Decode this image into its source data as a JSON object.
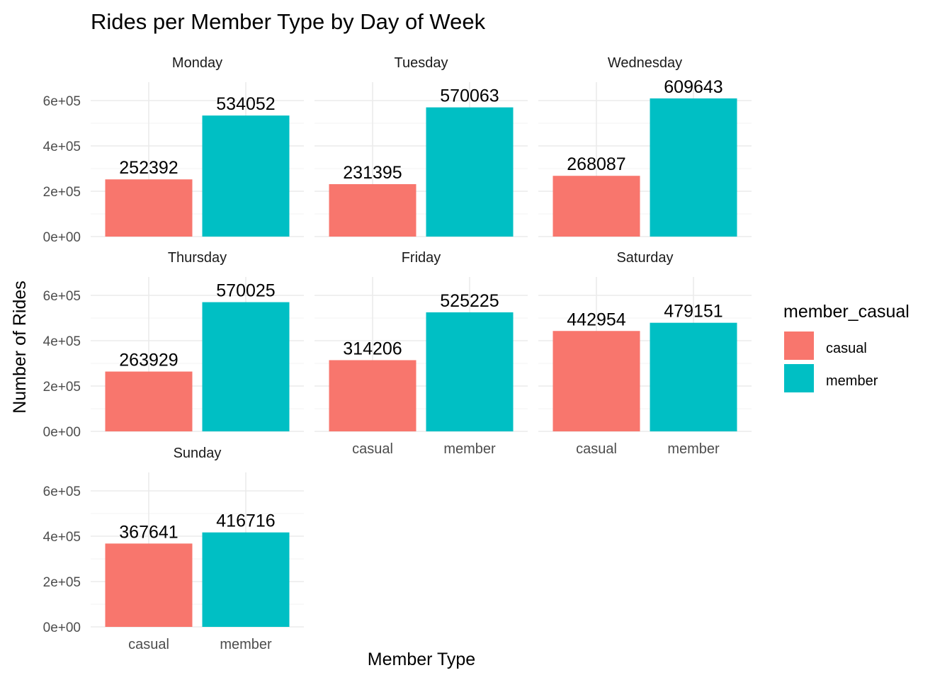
{
  "chart_data": {
    "type": "bar",
    "title": "Rides per Member Type by Day of Week",
    "xlabel": "Member Type",
    "ylabel": "Number of Rides",
    "categories": [
      "casual",
      "member"
    ],
    "ylim": [
      0,
      700000
    ],
    "yticks": [
      0,
      200000,
      400000,
      600000
    ],
    "ytick_labels": [
      "0e+00",
      "2e+05",
      "4e+05",
      "6e+05"
    ],
    "grid": true,
    "legend": {
      "title": "member_casual",
      "position": "right",
      "entries": [
        "casual",
        "member"
      ]
    },
    "colors": {
      "casual": "#F8766D",
      "member": "#00BFC4"
    },
    "facets": [
      {
        "name": "Monday",
        "values": [
          252392,
          534052
        ],
        "labels": [
          "252392",
          "534052"
        ]
      },
      {
        "name": "Tuesday",
        "values": [
          231395,
          570063
        ],
        "labels": [
          "231395",
          "570063"
        ]
      },
      {
        "name": "Wednesday",
        "values": [
          268087,
          609643
        ],
        "labels": [
          "268087",
          "609643"
        ]
      },
      {
        "name": "Thursday",
        "values": [
          263929,
          570025
        ],
        "labels": [
          "263929",
          "570025"
        ]
      },
      {
        "name": "Friday",
        "values": [
          314206,
          525225
        ],
        "labels": [
          "314206",
          "525225"
        ]
      },
      {
        "name": "Saturday",
        "values": [
          442954,
          479151
        ],
        "labels": [
          "442954",
          "479151"
        ]
      },
      {
        "name": "Sunday",
        "values": [
          367641,
          416716
        ],
        "labels": [
          "367641",
          "416716"
        ]
      }
    ]
  }
}
